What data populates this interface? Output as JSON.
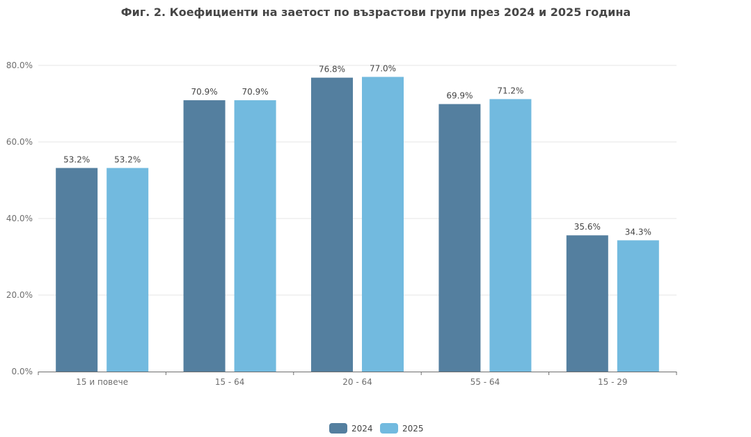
{
  "chart_data": {
    "type": "bar",
    "title": "Фиг. 2. Коефициенти на заетост по възрастови групи през 2024 и 2025 година",
    "xlabel": "",
    "ylabel": "",
    "categories": [
      "15 и повече",
      "15 - 64",
      "20 - 64",
      "55 - 64",
      "15 - 29"
    ],
    "series": [
      {
        "name": "2024",
        "color": "#547f9f",
        "values": [
          53.2,
          70.9,
          76.8,
          69.9,
          35.6
        ]
      },
      {
        "name": "2025",
        "color": "#72badf",
        "values": [
          53.2,
          70.9,
          77.0,
          71.2,
          34.3
        ]
      }
    ],
    "ylim": [
      0,
      80
    ],
    "yticks": [
      "0.0%",
      "20.0%",
      "40.0%",
      "60.0%",
      "80.0%"
    ],
    "ytick_values": [
      0,
      20,
      40,
      60,
      80
    ],
    "grid": true,
    "legend_position": "bottom-center"
  }
}
